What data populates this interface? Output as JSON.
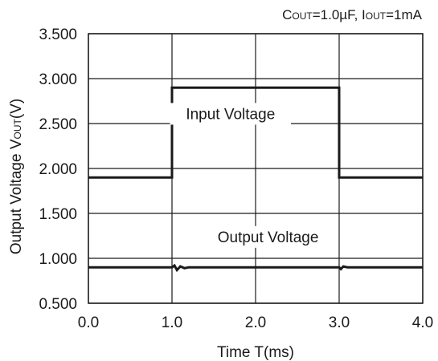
{
  "chart_data": {
    "type": "line",
    "conditions": {
      "cout_main": "C",
      "cout_sub": "OUT",
      "cout_value": "=1.0µF, I",
      "iout_sub": "OUT",
      "iout_value": "=1mA"
    },
    "xlabel": "Time T(ms)",
    "ylabel": {
      "main": "Output Voltage V",
      "sub": "OUT",
      "tail": "(V)"
    },
    "xlim": [
      0.0,
      4.0
    ],
    "ylim": [
      0.5,
      3.5
    ],
    "x_ticks": [
      "0.0",
      "1.0",
      "2.0",
      "3.0",
      "4.0"
    ],
    "x_tick_values": [
      0.0,
      1.0,
      2.0,
      3.0,
      4.0
    ],
    "y_ticks": [
      "0.500",
      "1.000",
      "1.500",
      "2.000",
      "2.500",
      "3.000",
      "3.500"
    ],
    "y_tick_values": [
      0.5,
      1.0,
      1.5,
      2.0,
      2.5,
      3.0,
      3.5
    ],
    "grid": true,
    "series": [
      {
        "name": "Input Voltage",
        "x": [
          0.0,
          1.0,
          1.0,
          3.0,
          3.0,
          4.0
        ],
        "y": [
          1.9,
          1.9,
          2.9,
          2.9,
          1.9,
          1.9
        ]
      },
      {
        "name": "Output Voltage",
        "x": [
          0.0,
          1.0,
          1.03,
          1.06,
          1.1,
          1.15,
          1.2,
          1.3,
          3.0,
          3.02,
          3.05,
          3.1,
          4.0
        ],
        "y": [
          0.9,
          0.9,
          0.92,
          0.87,
          0.91,
          0.89,
          0.9,
          0.9,
          0.9,
          0.88,
          0.91,
          0.9,
          0.9
        ]
      }
    ],
    "annotations": [
      {
        "text": "Input Voltage",
        "x": 1.7,
        "y": 2.55
      },
      {
        "text": "Output Voltage",
        "x": 2.15,
        "y": 1.18
      }
    ],
    "colors": {
      "line": "#1a1a1a",
      "grid": "#1a1a1a",
      "background": "#ffffff"
    }
  }
}
